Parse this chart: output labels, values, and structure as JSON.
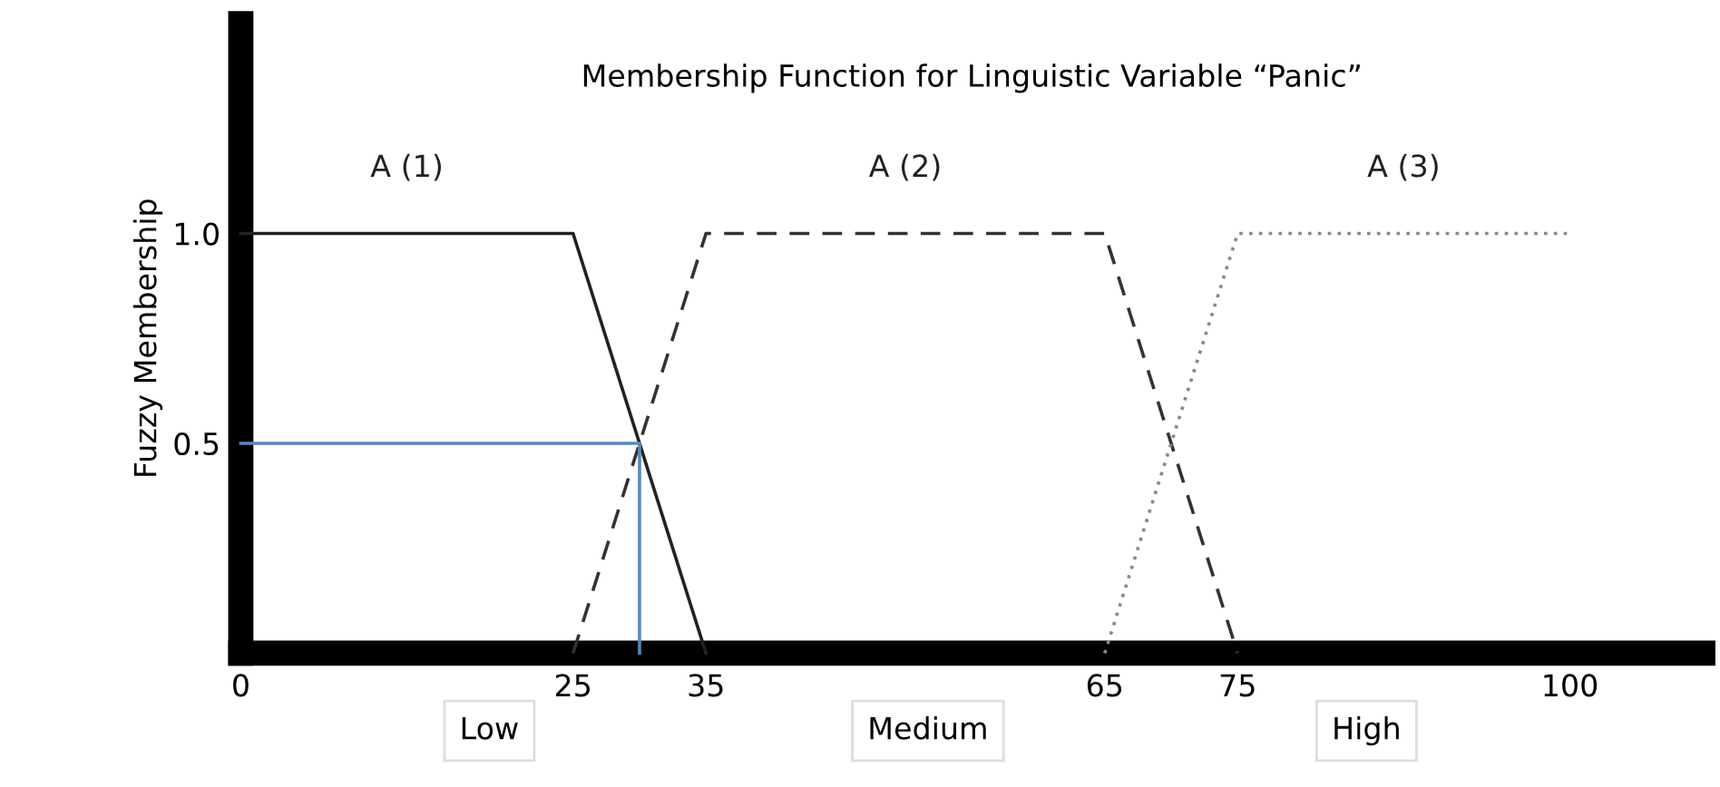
{
  "chart_data": {
    "type": "line",
    "title": "Membership Function for Linguistic Variable “Panic”",
    "ylabel": "Fuzzy Membership",
    "series": [
      {
        "name": "A (1)",
        "color": "#222222",
        "x": [
          0,
          25,
          35
        ],
        "values": [
          1,
          1,
          0
        ],
        "line_style": "solid"
      },
      {
        "name": "A (2)",
        "color": "#333333",
        "x": [
          25,
          35,
          65,
          75
        ],
        "values": [
          0,
          1,
          1,
          0
        ],
        "line_style": "dashed"
      },
      {
        "name": "A (3)",
        "color": "#888888",
        "x": [
          65,
          75,
          100
        ],
        "values": [
          0,
          1,
          1
        ],
        "line_style": "dotted"
      },
      {
        "color": "#5b87b5",
        "x": [
          0,
          30,
          30
        ],
        "values": [
          0.5,
          0.5,
          0
        ],
        "line_style": "solid"
      }
    ],
    "xlim": [
      0,
      110
    ],
    "xticks": [
      0,
      25,
      35,
      65,
      75,
      100
    ],
    "ylim": [
      0,
      1.5
    ],
    "yticks": [
      {
        "value": 0.5,
        "label": "0.5"
      },
      {
        "value": 1,
        "label": "1.0"
      }
    ],
    "annotations": [
      "Low",
      "Medium",
      "High"
    ],
    "grid": false,
    "legend": false,
    "marker": "none"
  }
}
